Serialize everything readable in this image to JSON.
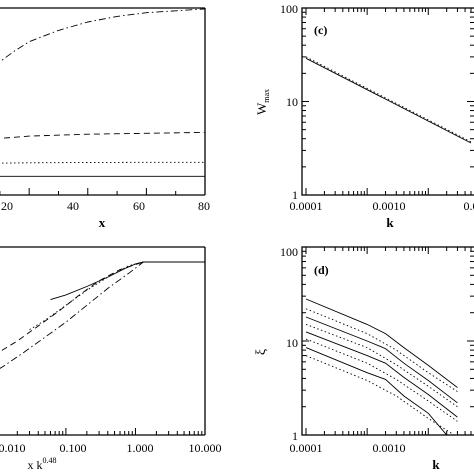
{
  "chart_data": [
    {
      "panel": "top-left",
      "type": "line",
      "panel_label": "",
      "xlabel": "x",
      "ylabel": "",
      "xlim": [
        8,
        80
      ],
      "ylim": [
        0,
        1
      ],
      "x_ticks": [
        "20",
        "40",
        "60",
        "80"
      ],
      "y_ticks": [],
      "series": [
        {
          "style": "dash-dot",
          "x": [
            8,
            15,
            20,
            30,
            40,
            50,
            60,
            70,
            80
          ],
          "y": [
            0.69,
            0.77,
            0.82,
            0.88,
            0.925,
            0.955,
            0.975,
            0.985,
            0.995
          ]
        },
        {
          "style": "dashed",
          "x": [
            8,
            20,
            40,
            60,
            80
          ],
          "y": [
            0.3,
            0.315,
            0.325,
            0.33,
            0.335
          ]
        },
        {
          "style": "dotted",
          "x": [
            8,
            20,
            40,
            60,
            80
          ],
          "y": [
            0.17,
            0.172,
            0.174,
            0.175,
            0.175
          ]
        },
        {
          "style": "solid",
          "x": [
            8,
            20,
            40,
            60,
            80
          ],
          "y": [
            0.1,
            0.1,
            0.1,
            0.1,
            0.1
          ]
        }
      ]
    },
    {
      "panel": "top-right",
      "type": "line",
      "panel_label": "(c)",
      "xlabel": "k",
      "ylabel": "W",
      "ylabel_sub": "max",
      "xscale": "log",
      "yscale": "log",
      "xlim": [
        0.0001,
        0.05
      ],
      "ylim": [
        1,
        100
      ],
      "x_ticks": [
        "0.0001",
        "0.0010",
        "0.0"
      ],
      "y_ticks": [
        "100",
        "10",
        "1"
      ],
      "series": [
        {
          "style": "solid",
          "x": [
            0.0001,
            0.05
          ],
          "y": [
            29,
            3.6
          ]
        },
        {
          "style": "dotted",
          "x": [
            0.0001,
            0.05
          ],
          "y": [
            30,
            3.7
          ]
        }
      ]
    },
    {
      "panel": "bottom-left",
      "type": "line",
      "panel_label": "",
      "xlabel": "x k",
      "xlabel_sup": "0.48",
      "ylabel": "",
      "xscale": "log",
      "xlim": [
        0.003,
        10
      ],
      "ylim": [
        0,
        1
      ],
      "x_ticks": [
        "0.010",
        "0.100",
        "1.000",
        "10.000"
      ],
      "y_ticks": [],
      "series": [
        {
          "style": "solid",
          "x": [
            0.06,
            0.1,
            0.2,
            0.4,
            0.7,
            1.0,
            1.3,
            2,
            5,
            10
          ],
          "y": [
            0.72,
            0.745,
            0.79,
            0.84,
            0.885,
            0.91,
            0.92,
            0.92,
            0.92,
            0.92
          ]
        },
        {
          "style": "dotted",
          "x": [
            0.03,
            0.05,
            0.1,
            0.2,
            0.4,
            0.8,
            1.3,
            2,
            5,
            10
          ],
          "y": [
            0.56,
            0.61,
            0.69,
            0.77,
            0.84,
            0.9,
            0.92,
            0.92,
            0.92,
            0.92
          ]
        },
        {
          "style": "dashed",
          "x": [
            0.012,
            0.02,
            0.04,
            0.08,
            0.15,
            0.3,
            0.6,
            1.3,
            2,
            5,
            10
          ],
          "y": [
            0.45,
            0.5,
            0.58,
            0.66,
            0.74,
            0.82,
            0.88,
            0.92,
            0.92,
            0.92,
            0.92
          ]
        },
        {
          "style": "dash-dot",
          "x": [
            0.003,
            0.006,
            0.012,
            0.025,
            0.05,
            0.1,
            0.2,
            0.4,
            0.8,
            1.3,
            2,
            5,
            10
          ],
          "y": [
            0.25,
            0.3,
            0.36,
            0.44,
            0.52,
            0.6,
            0.69,
            0.78,
            0.86,
            0.92,
            0.92,
            0.92,
            0.92
          ]
        }
      ]
    },
    {
      "panel": "bottom-right",
      "type": "line",
      "panel_label": "(d)",
      "xlabel": "k",
      "ylabel": "ξ",
      "xscale": "log",
      "yscale": "log",
      "xlim": [
        0.0001,
        0.05
      ],
      "ylim": [
        1,
        100
      ],
      "x_ticks": [
        "0.0001",
        "0.0010"
      ],
      "y_ticks": [
        "100",
        "10",
        "1"
      ],
      "series": [
        {
          "style": "solid",
          "x": [
            0.0001,
            0.001,
            0.002,
            0.004,
            0.01,
            0.03
          ],
          "y": [
            28,
            15,
            12,
            8.5,
            5.5,
            3.2
          ]
        },
        {
          "style": "solid",
          "x": [
            0.0001,
            0.001,
            0.002,
            0.004,
            0.01,
            0.03
          ],
          "y": [
            18,
            10,
            8.3,
            5.8,
            3.8,
            2.2
          ]
        },
        {
          "style": "solid",
          "x": [
            0.0001,
            0.001,
            0.002,
            0.004,
            0.01,
            0.03
          ],
          "y": [
            12.5,
            7,
            5.8,
            4.1,
            2.7,
            1.55
          ]
        },
        {
          "style": "solid",
          "x": [
            0.0001,
            0.001,
            0.002,
            0.004,
            0.01,
            0.02
          ],
          "y": [
            8.5,
            4.6,
            3.9,
            2.6,
            1.7,
            1.0
          ]
        },
        {
          "style": "dotted",
          "x": [
            0.0001,
            0.001,
            0.003,
            0.01,
            0.03
          ],
          "y": [
            22,
            12,
            8,
            4.6,
            2.9
          ]
        },
        {
          "style": "dotted",
          "x": [
            0.0001,
            0.001,
            0.003,
            0.01,
            0.03
          ],
          "y": [
            15,
            8.5,
            5.6,
            3.3,
            2.0
          ]
        },
        {
          "style": "dotted",
          "x": [
            0.0001,
            0.001,
            0.003,
            0.01,
            0.03
          ],
          "y": [
            10.5,
            5.8,
            3.9,
            2.3,
            1.4
          ]
        },
        {
          "style": "dotted",
          "x": [
            0.0001,
            0.001,
            0.003,
            0.01,
            0.03
          ],
          "y": [
            7,
            3.8,
            2.6,
            1.5,
            0.95
          ]
        }
      ]
    }
  ]
}
